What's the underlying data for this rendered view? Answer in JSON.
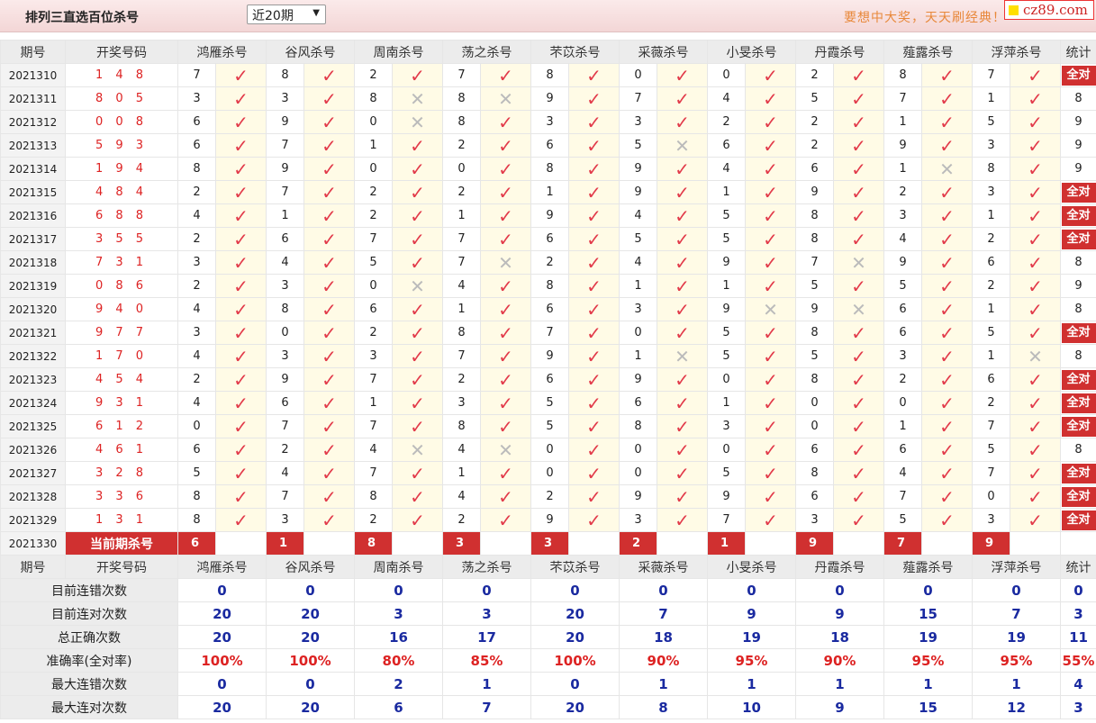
{
  "header": {
    "title": "排列三直选百位杀号",
    "range_select": "近20期",
    "slogan": "要想中大奖，天天刷经典！",
    "logo": "cz89.com"
  },
  "colors": {
    "accent": "#d03030",
    "check": "#e23a4a",
    "stat_blue": "#1a2aa0"
  },
  "columns": {
    "period": "期号",
    "draw": "开奖号码",
    "predictors": [
      "鸿雁杀号",
      "谷风杀号",
      "周南杀号",
      "荡之杀号",
      "芣苡杀号",
      "采薇杀号",
      "小旻杀号",
      "丹霞杀号",
      "薤露杀号",
      "浮萍杀号"
    ],
    "stat": "统计"
  },
  "rows": [
    {
      "period": "2021310",
      "draw": "1 4 8",
      "kills": [
        "7",
        "8",
        "2",
        "7",
        "8",
        "0",
        "0",
        "2",
        "8",
        "7"
      ],
      "wrong": [],
      "stat": "全对"
    },
    {
      "period": "2021311",
      "draw": "8 0 5",
      "kills": [
        "3",
        "3",
        "8",
        "8",
        "9",
        "7",
        "4",
        "5",
        "7",
        "1"
      ],
      "wrong": [
        2,
        3
      ],
      "stat": "8"
    },
    {
      "period": "2021312",
      "draw": "0 0 8",
      "kills": [
        "6",
        "9",
        "0",
        "8",
        "3",
        "3",
        "2",
        "2",
        "1",
        "5"
      ],
      "wrong": [
        2
      ],
      "stat": "9"
    },
    {
      "period": "2021313",
      "draw": "5 9 3",
      "kills": [
        "6",
        "7",
        "1",
        "2",
        "6",
        "5",
        "6",
        "2",
        "9",
        "3"
      ],
      "wrong": [
        5
      ],
      "stat": "9"
    },
    {
      "period": "2021314",
      "draw": "1 9 4",
      "kills": [
        "8",
        "9",
        "0",
        "0",
        "8",
        "9",
        "4",
        "6",
        "1",
        "8"
      ],
      "wrong": [
        8
      ],
      "stat": "9"
    },
    {
      "period": "2021315",
      "draw": "4 8 4",
      "kills": [
        "2",
        "7",
        "2",
        "2",
        "1",
        "9",
        "1",
        "9",
        "2",
        "3"
      ],
      "wrong": [],
      "stat": "全对"
    },
    {
      "period": "2021316",
      "draw": "6 8 8",
      "kills": [
        "4",
        "1",
        "2",
        "1",
        "9",
        "4",
        "5",
        "8",
        "3",
        "1"
      ],
      "wrong": [],
      "stat": "全对"
    },
    {
      "period": "2021317",
      "draw": "3 5 5",
      "kills": [
        "2",
        "6",
        "7",
        "7",
        "6",
        "5",
        "5",
        "8",
        "4",
        "2"
      ],
      "wrong": [],
      "stat": "全对"
    },
    {
      "period": "2021318",
      "draw": "7 3 1",
      "kills": [
        "3",
        "4",
        "5",
        "7",
        "2",
        "4",
        "9",
        "7",
        "9",
        "6"
      ],
      "wrong": [
        3,
        7
      ],
      "stat": "8"
    },
    {
      "period": "2021319",
      "draw": "0 8 6",
      "kills": [
        "2",
        "3",
        "0",
        "4",
        "8",
        "1",
        "1",
        "5",
        "5",
        "2"
      ],
      "wrong": [
        2
      ],
      "stat": "9"
    },
    {
      "period": "2021320",
      "draw": "9 4 0",
      "kills": [
        "4",
        "8",
        "6",
        "1",
        "6",
        "3",
        "9",
        "9",
        "6",
        "1"
      ],
      "wrong": [
        6,
        7
      ],
      "stat": "8"
    },
    {
      "period": "2021321",
      "draw": "9 7 7",
      "kills": [
        "3",
        "0",
        "2",
        "8",
        "7",
        "0",
        "5",
        "8",
        "6",
        "5"
      ],
      "wrong": [],
      "stat": "全对"
    },
    {
      "period": "2021322",
      "draw": "1 7 0",
      "kills": [
        "4",
        "3",
        "3",
        "7",
        "9",
        "1",
        "5",
        "5",
        "3",
        "1"
      ],
      "wrong": [
        5,
        9
      ],
      "stat": "8"
    },
    {
      "period": "2021323",
      "draw": "4 5 4",
      "kills": [
        "2",
        "9",
        "7",
        "2",
        "6",
        "9",
        "0",
        "8",
        "2",
        "6"
      ],
      "wrong": [],
      "stat": "全对"
    },
    {
      "period": "2021324",
      "draw": "9 3 1",
      "kills": [
        "4",
        "6",
        "1",
        "3",
        "5",
        "6",
        "1",
        "0",
        "0",
        "2"
      ],
      "wrong": [],
      "stat": "全对"
    },
    {
      "period": "2021325",
      "draw": "6 1 2",
      "kills": [
        "0",
        "7",
        "7",
        "8",
        "5",
        "8",
        "3",
        "0",
        "1",
        "7"
      ],
      "wrong": [],
      "stat": "全对"
    },
    {
      "period": "2021326",
      "draw": "4 6 1",
      "kills": [
        "6",
        "2",
        "4",
        "4",
        "0",
        "0",
        "0",
        "6",
        "6",
        "5"
      ],
      "wrong": [
        2,
        3
      ],
      "stat": "8"
    },
    {
      "period": "2021327",
      "draw": "3 2 8",
      "kills": [
        "5",
        "4",
        "7",
        "1",
        "0",
        "0",
        "5",
        "8",
        "4",
        "7"
      ],
      "wrong": [],
      "stat": "全对"
    },
    {
      "period": "2021328",
      "draw": "3 3 6",
      "kills": [
        "8",
        "7",
        "8",
        "4",
        "2",
        "9",
        "9",
        "6",
        "7",
        "0"
      ],
      "wrong": [],
      "stat": "全对"
    },
    {
      "period": "2021329",
      "draw": "1 3 1",
      "kills": [
        "8",
        "3",
        "2",
        "2",
        "9",
        "3",
        "7",
        "3",
        "5",
        "3"
      ],
      "wrong": [],
      "stat": "全对"
    }
  ],
  "current": {
    "period": "2021330",
    "label": "当前期杀号",
    "kills": [
      "6",
      "1",
      "8",
      "3",
      "3",
      "2",
      "1",
      "9",
      "7",
      "9"
    ]
  },
  "stats": [
    {
      "label": "目前连错次数",
      "values": [
        "0",
        "0",
        "0",
        "0",
        "0",
        "0",
        "0",
        "0",
        "0",
        "0",
        "0"
      ]
    },
    {
      "label": "目前连对次数",
      "values": [
        "20",
        "20",
        "3",
        "3",
        "20",
        "7",
        "9",
        "9",
        "15",
        "7",
        "3"
      ]
    },
    {
      "label": "总正确次数",
      "values": [
        "20",
        "20",
        "16",
        "17",
        "20",
        "18",
        "19",
        "18",
        "19",
        "19",
        "11"
      ]
    },
    {
      "label": "准确率(全对率)",
      "values": [
        "100%",
        "100%",
        "80%",
        "85%",
        "100%",
        "90%",
        "95%",
        "90%",
        "95%",
        "95%",
        "55%"
      ],
      "highlight": true
    },
    {
      "label": "最大连错次数",
      "values": [
        "0",
        "0",
        "2",
        "1",
        "0",
        "1",
        "1",
        "1",
        "1",
        "1",
        "4"
      ]
    },
    {
      "label": "最大连对次数",
      "values": [
        "20",
        "20",
        "6",
        "7",
        "20",
        "8",
        "10",
        "9",
        "15",
        "12",
        "3"
      ]
    }
  ]
}
